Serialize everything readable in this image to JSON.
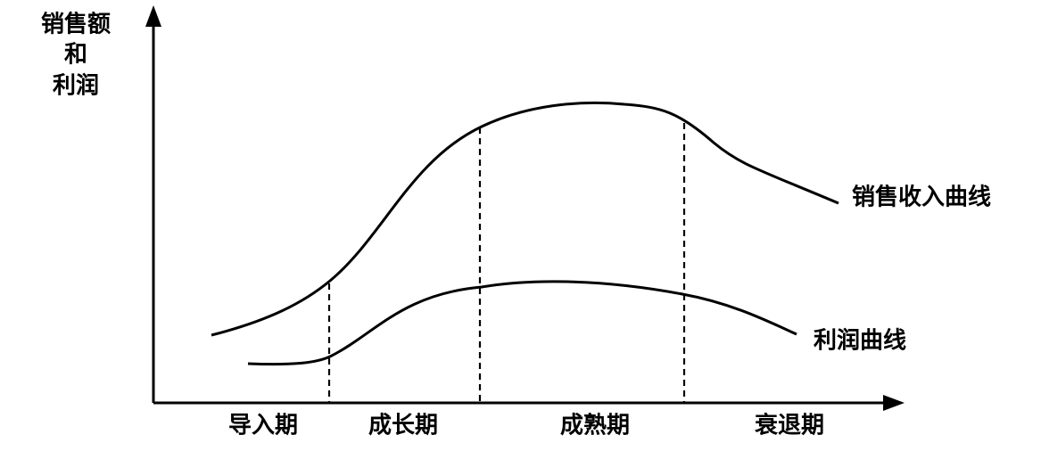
{
  "axis": {
    "y_label": [
      "销售额",
      "和",
      "利润"
    ]
  },
  "stages": [
    "导入期",
    "成长期",
    "成熟期",
    "衰退期"
  ],
  "curves": [
    {
      "label": "销售收入曲线"
    },
    {
      "label": "利润曲线"
    }
  ]
}
